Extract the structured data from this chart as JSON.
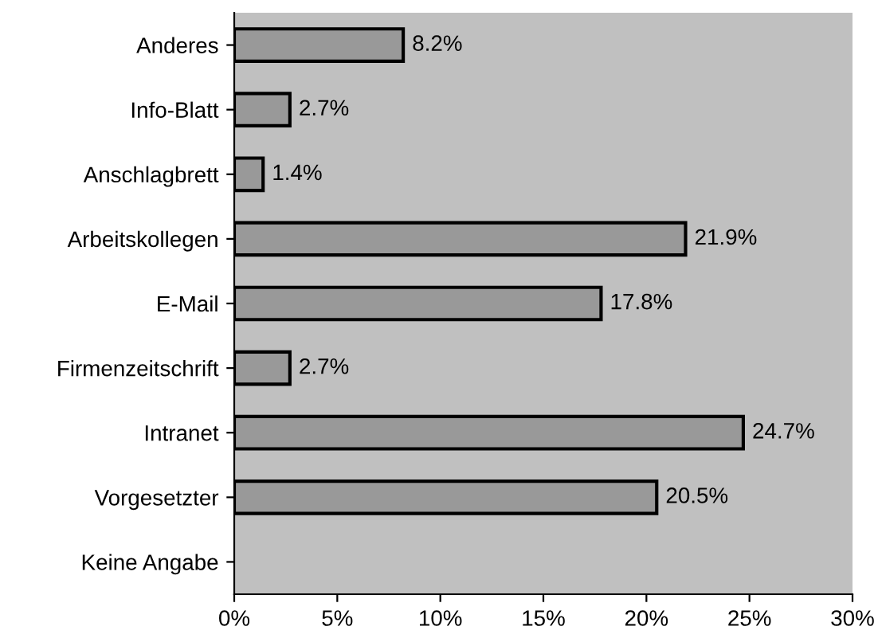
{
  "chart_data": {
    "type": "bar",
    "orientation": "horizontal",
    "categories": [
      "Anderes",
      "Info-Blatt",
      "Anschlagbrett",
      "Arbeitskollegen",
      "E-Mail",
      "Firmenzeitschrift",
      "Intranet",
      "Vorgesetzter",
      "Keine Angabe"
    ],
    "values": [
      8.2,
      2.7,
      1.4,
      21.9,
      17.8,
      2.7,
      24.7,
      20.5,
      null
    ],
    "value_labels": [
      "8.2%",
      "2.7%",
      "1.4%",
      "21.9%",
      "17.8%",
      "2.7%",
      "24.7%",
      "20.5%",
      null
    ],
    "color": "#999999",
    "xlim": [
      0,
      30
    ],
    "xticks": [
      {
        "value": 0,
        "label": "0%"
      },
      {
        "value": 5,
        "label": "5%"
      },
      {
        "value": 10,
        "label": "10%"
      },
      {
        "value": 15,
        "label": "15%"
      },
      {
        "value": 20,
        "label": "20%"
      },
      {
        "value": 25,
        "label": "25%"
      },
      {
        "value": 30,
        "label": "30%"
      }
    ],
    "grid": false,
    "legend": false
  }
}
